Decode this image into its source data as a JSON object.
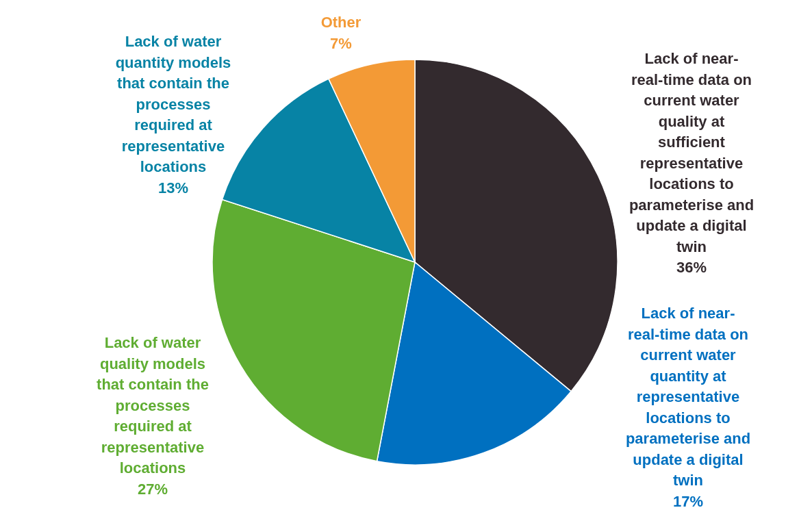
{
  "chart_data": {
    "type": "pie",
    "categories": [
      "Lack of near-real-time data on current water quality at sufficient representative locations to parameterise and update a digital twin",
      "Lack of near-real-time data on current water quantity at representative locations to parameterise and update a digital twin",
      "Lack of water quality models that contain the processes required at representative locations",
      "Lack of water quantity models that contain the processes required at representative locations",
      "Other"
    ],
    "values": [
      36,
      17,
      27,
      13,
      7
    ],
    "colors": [
      "#332a2e",
      "#0070c0",
      "#5fad32",
      "#0783a5",
      "#f39a36"
    ],
    "value_labels": [
      "36%",
      "17%",
      "27%",
      "13%",
      "7%"
    ],
    "legend": false
  }
}
